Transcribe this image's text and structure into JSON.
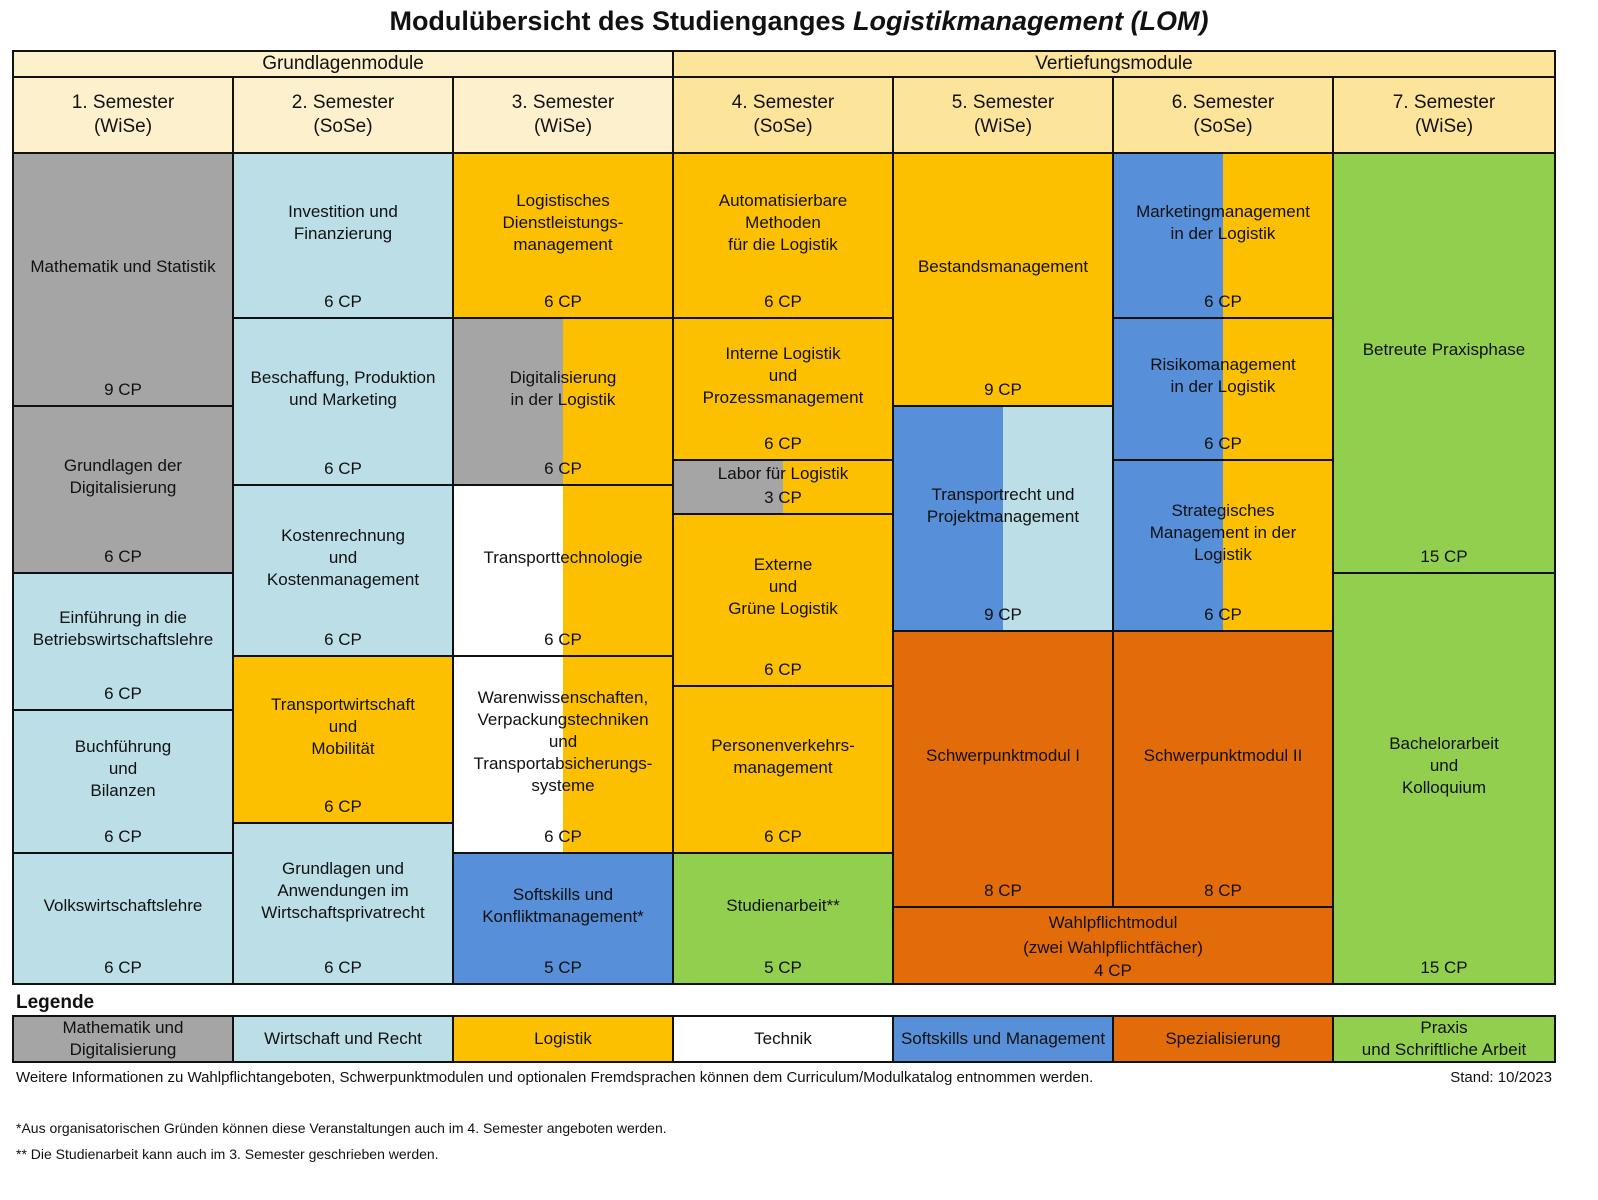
{
  "title": {
    "main": "Modulübersicht des Studienganges ",
    "program": "Logistikmanagement (LOM)"
  },
  "colors": {
    "grundlagen_header": "#fdf0cc",
    "vertiefung_header": "#fde49b",
    "Mathematik und Digitalisierung": "#a5a5a5",
    "Wirtschaft und Recht": "#bcdfe7",
    "Logistik": "#fdc000",
    "Technik": "#ffffff",
    "Softskills und Management": "#578fd8",
    "Spezialisierung": "#e26b0a",
    "Praxis und Schriftliche Arbeit": "#92cf4f"
  },
  "groups": {
    "grundlagen": "Grundlagenmodule",
    "vertiefung": "Vertiefungsmodule"
  },
  "semesters": [
    "1. Semester\n(WiSe)",
    "2. Semester\n(SoSe)",
    "3. Semester\n(WiSe)",
    "4. Semester\n(SoSe)",
    "5. Semester\n(WiSe)",
    "6. Semester\n(SoSe)",
    "7. Semester\n(WiSe)"
  ],
  "modules": {
    "mathe": {
      "name": "Mathematik und Statistik",
      "cp": "9 CP"
    },
    "grund_digi": {
      "name": "Grundlagen der\nDigitalisierung",
      "cp": "6 CP"
    },
    "bwl": {
      "name": "Einführung in die\nBetriebswirtschaftslehre",
      "cp": "6 CP"
    },
    "buchf": {
      "name": "Buchführung\nund\nBilanzen",
      "cp": "6 CP"
    },
    "vwl": {
      "name": "Volkswirtschaftslehre",
      "cp": "6 CP"
    },
    "invest": {
      "name": "Investition und\nFinanzierung",
      "cp": "6 CP"
    },
    "beschaff": {
      "name": "Beschaffung, Produktion\nund Marketing",
      "cp": "6 CP"
    },
    "kosten": {
      "name": "Kostenrechnung\nund\nKostenmanagement",
      "cp": "6 CP"
    },
    "transportw": {
      "name": "Transportwirtschaft\nund\nMobilität",
      "cp": "6 CP"
    },
    "recht": {
      "name": "Grundlagen und\nAnwendungen im\nWirtschaftsprivatrecht",
      "cp": "6 CP"
    },
    "logdienst": {
      "name": "Logistisches\nDienstleistungs-\nmanagement",
      "cp": "6 CP"
    },
    "digilog": {
      "name": "Digitalisierung\nin der Logistik",
      "cp": "6 CP"
    },
    "transtech": {
      "name": "Transporttechnologie",
      "cp": "6 CP"
    },
    "waren": {
      "name": "Warenwissenschaften,\nVerpackungstechniken\nund\nTransportabsicherungs-\nsysteme",
      "cp": "6 CP"
    },
    "softskills": {
      "name": "Softskills und\nKonfliktmanagement*",
      "cp": "5 CP"
    },
    "automat": {
      "name": "Automatisierbare\nMethoden\nfür die Logistik",
      "cp": "6 CP"
    },
    "intern": {
      "name": "Interne Logistik\nund\nProzessmanagement",
      "cp": "6 CP"
    },
    "labor": {
      "name": "Labor für Logistik",
      "cp": "3 CP"
    },
    "extern": {
      "name": "Externe\nund\nGrüne Logistik",
      "cp": "6 CP"
    },
    "personen": {
      "name": "Personenverkehrs-\nmanagement",
      "cp": "6 CP"
    },
    "studienarbeit": {
      "name": "Studienarbeit**",
      "cp": "5 CP"
    },
    "bestand": {
      "name": "Bestandsmanagement",
      "cp": "9 CP"
    },
    "transrecht": {
      "name": "Transportrecht und\nProjektmanagement",
      "cp": "9 CP"
    },
    "schwer1": {
      "name": "Schwerpunktmodul I",
      "cp": "8 CP"
    },
    "marketing": {
      "name": "Marketingmanagement\nin der Logistik",
      "cp": "6 CP"
    },
    "risiko": {
      "name": "Risikomanagement\nin der Logistik",
      "cp": "6 CP"
    },
    "strateg": {
      "name": "Strategisches\nManagement in der\nLogistik",
      "cp": "6 CP"
    },
    "schwer2": {
      "name": "Schwerpunktmodul II",
      "cp": "8 CP"
    },
    "wahl": {
      "name": "Wahlpflichtmodul\n(zwei Wahlpflichtfächer)",
      "cp": "4 CP"
    },
    "praxis": {
      "name": "Betreute Praxisphase",
      "cp": "15 CP"
    },
    "bachelor": {
      "name": "Bachelorarbeit\nund\nKolloquium",
      "cp": "15 CP"
    }
  },
  "legend": {
    "title": "Legende",
    "items": [
      "Mathematik und\nDigitalisierung",
      "Wirtschaft und Recht",
      "Logistik",
      "Technik",
      "Softskills und Management",
      "Spezialisierung",
      "Praxis\nund Schriftliche Arbeit"
    ]
  },
  "footer": {
    "info": "Weitere Informationen zu Wahlpflichtangeboten, Schwerpunktmodulen und optionalen Fremdsprachen können dem Curriculum/Modulkatalog entnommen werden.",
    "stand": "Stand: 10/2023",
    "note1": "*Aus organisatorischen Gründen können diese Veranstaltungen auch im 4. Semester angeboten werden.",
    "note2": "** Die Studienarbeit kann auch im 3. Semester geschrieben werden."
  }
}
